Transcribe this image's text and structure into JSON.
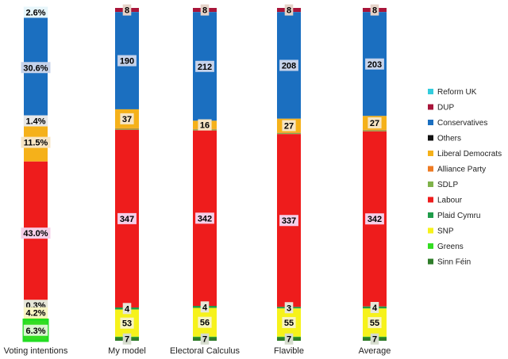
{
  "chart_data": {
    "type": "bar",
    "stacked": true,
    "categories": [
      "Voting intentions",
      "My model",
      "Electoral Calculus",
      "Flavible",
      "Average"
    ],
    "series": [
      {
        "name": "Reform UK",
        "color": "#33ccdd",
        "values": [
          2.6,
          0,
          0,
          0,
          0
        ],
        "labels": [
          "2.6%",
          "",
          "",
          "",
          ""
        ]
      },
      {
        "name": "DUP",
        "color": "#a8153a",
        "values": [
          0,
          8,
          8,
          8,
          8
        ],
        "labels": [
          "",
          "8",
          "8",
          "8",
          "8"
        ]
      },
      {
        "name": "Conservatives",
        "color": "#1b6fc0",
        "values": [
          30.6,
          190,
          212,
          208,
          203
        ],
        "labels": [
          "30.6%",
          "190",
          "212",
          "208",
          "203"
        ]
      },
      {
        "name": "Others",
        "color": "#111111",
        "values": [
          1.4,
          0,
          0,
          0,
          0
        ],
        "labels": [
          "1.4%",
          "",
          "",
          "",
          ""
        ]
      },
      {
        "name": "Liberal Democrats",
        "color": "#f5b11a",
        "values": [
          11.5,
          37,
          16,
          27,
          27
        ],
        "labels": [
          "11.5%",
          "37",
          "16",
          "27",
          "27"
        ]
      },
      {
        "name": "Alliance Party",
        "color": "#ee7a22",
        "values": [
          0,
          1,
          1,
          1,
          1
        ],
        "labels": [
          "",
          "",
          "",
          "",
          ""
        ]
      },
      {
        "name": "SDLP",
        "color": "#7fb24a",
        "values": [
          0,
          2,
          2,
          2,
          2
        ],
        "labels": [
          "",
          "",
          "",
          "",
          ""
        ]
      },
      {
        "name": "Labour",
        "color": "#ee1c1c",
        "values": [
          43.0,
          347,
          342,
          337,
          342
        ],
        "labels": [
          "43.0%",
          "347",
          "342",
          "337",
          "342"
        ]
      },
      {
        "name": "Plaid Cymru",
        "color": "#1f9c4a",
        "values": [
          0.3,
          4,
          4,
          3,
          4
        ],
        "labels": [
          "0.3%",
          "4",
          "4",
          "3",
          "4"
        ]
      },
      {
        "name": "SNP",
        "color": "#f6f21b",
        "values": [
          4.2,
          53,
          56,
          55,
          55
        ],
        "labels": [
          "4.2%",
          "53",
          "56",
          "55",
          "55"
        ]
      },
      {
        "name": "Greens",
        "color": "#33dd22",
        "values": [
          6.3,
          1,
          1,
          1,
          1
        ],
        "labels": [
          "6.3%",
          "",
          "",
          "",
          ""
        ]
      },
      {
        "name": "Sinn Féin",
        "color": "#2f7d2a",
        "values": [
          0,
          7,
          7,
          7,
          7
        ],
        "labels": [
          "",
          "7",
          "7",
          "7",
          "7"
        ]
      }
    ],
    "legend": {
      "position": "right"
    },
    "grid": false,
    "title": "",
    "xlabel": "",
    "ylabel": ""
  }
}
